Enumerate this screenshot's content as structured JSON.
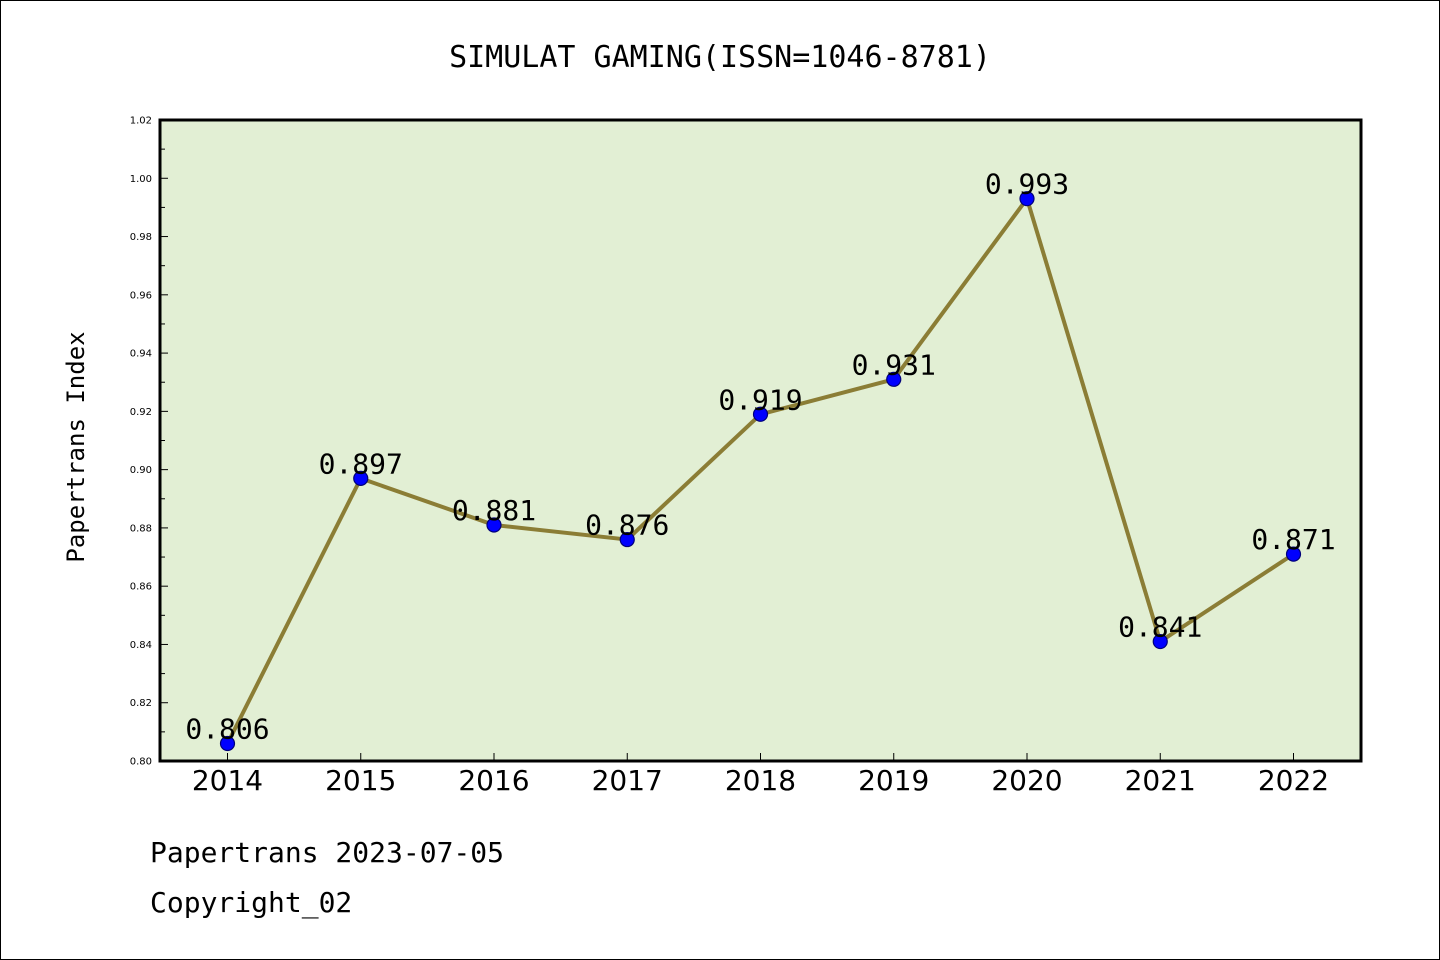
{
  "chart_data": {
    "type": "line",
    "title": "SIMULAT GAMING(ISSN=1046-8781)",
    "xlabel": "",
    "ylabel": "Papertrans Index",
    "categories": [
      "2014",
      "2015",
      "2016",
      "2017",
      "2018",
      "2019",
      "2020",
      "2021",
      "2022"
    ],
    "values": [
      0.806,
      0.897,
      0.881,
      0.876,
      0.919,
      0.931,
      0.993,
      0.841,
      0.871
    ],
    "data_labels": [
      "0.806",
      "0.897",
      "0.881",
      "0.876",
      "0.919",
      "0.931",
      "0.993",
      "0.841",
      "0.871"
    ],
    "ylim": [
      0.8,
      1.02
    ],
    "yticks": [
      "0.80",
      "0.82",
      "0.84",
      "0.86",
      "0.88",
      "0.90",
      "0.92",
      "0.94",
      "0.96",
      "0.98",
      "1.00",
      "1.02"
    ],
    "grid": false,
    "legend": "none",
    "colors": {
      "plot_background": "#e2efd4",
      "line": "#8b7d35",
      "marker": "#0000ff",
      "marker_edge": "#00007a"
    }
  },
  "footer": {
    "line1": "Papertrans 2023-07-05",
    "line2": "Copyright_02"
  }
}
